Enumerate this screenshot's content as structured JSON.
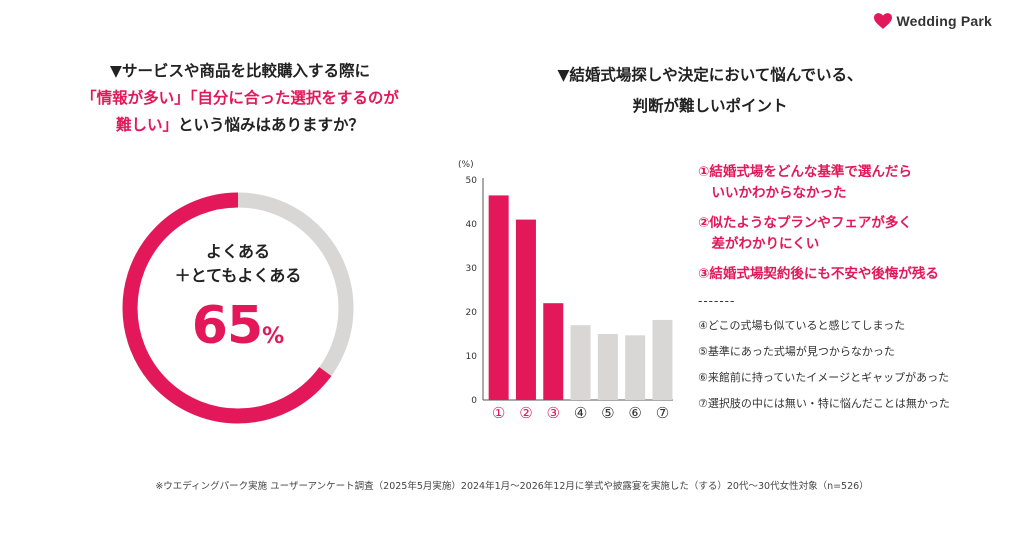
{
  "brand": {
    "name": "Wedding Park"
  },
  "left": {
    "title_line1": "▼サービスや商品を比較購入する際に",
    "title_line2_a": "「情報が多い」「自分に合った選択をするのが",
    "title_line3_a": "難しい」",
    "title_line3_b": "という悩みはありますか？",
    "donut": {
      "label_line1": "よくある",
      "label_line2": "＋とてもよくある",
      "value": "65",
      "unit": "%",
      "percent": 65,
      "colors": {
        "value": "#e2185a",
        "rest": "#d9d6d6"
      }
    }
  },
  "right": {
    "title_line1": "▼結婚式場探しや決定において悩んでいる、",
    "title_line2": "判断が難しいポイント"
  },
  "chart_data": {
    "type": "bar",
    "categories": [
      "①",
      "②",
      "③",
      "④",
      "⑤",
      "⑥",
      "⑦"
    ],
    "values": [
      46.5,
      41,
      22,
      17,
      15,
      14.7,
      18.2
    ],
    "highlight": [
      true,
      true,
      true,
      false,
      false,
      false,
      false
    ],
    "colors": {
      "highlight": "#e2185a",
      "normal": "#d9d6d6"
    },
    "ylabel": "(%)",
    "yticks": [
      0,
      10,
      20,
      30,
      40,
      50
    ],
    "ylim": [
      0,
      50
    ]
  },
  "legend": {
    "items_highlight": [
      "①結婚式場をどんな基準で選んだら\n　いいかわからなかった",
      "②似たようなプランやフェアが多く\n　差がわかりにくい",
      "③結婚式場契約後にも不安や後悔が残る"
    ],
    "separator": "-------",
    "items_normal": [
      "④どこの式場も似ていると感じてしまった",
      "⑤基準にあった式場が見つからなかった",
      "⑥来館前に持っていたイメージとギャップがあった",
      "⑦選択肢の中には無い・特に悩んだことは無かった"
    ]
  },
  "footnote": "※ウエディングパーク実施 ユーザーアンケート調査（2025年5月実施）2024年1月〜2026年12月に挙式や披露宴を実施した（する）20代〜30代女性対象（n=526）"
}
